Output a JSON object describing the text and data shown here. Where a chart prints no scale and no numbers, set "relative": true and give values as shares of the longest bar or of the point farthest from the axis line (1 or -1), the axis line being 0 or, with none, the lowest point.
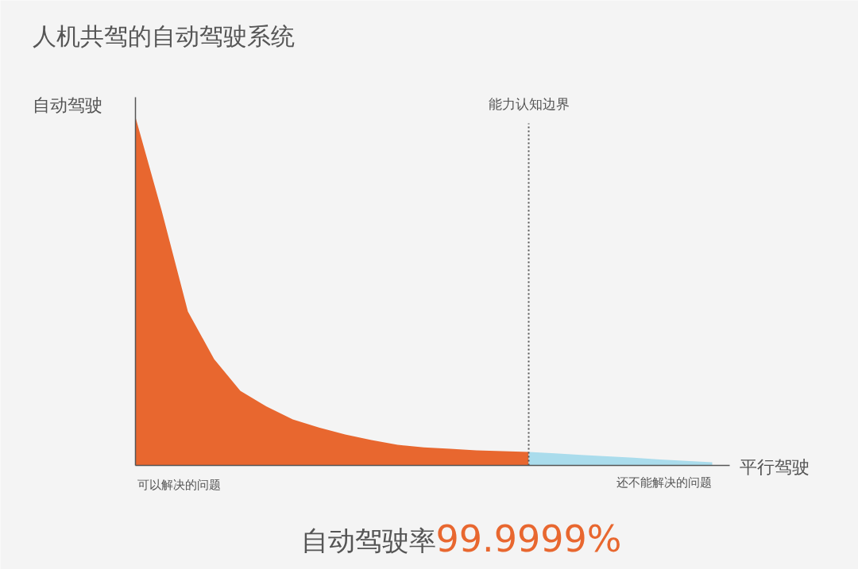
{
  "chart_data": {
    "type": "area",
    "title": "人机共驾的自动驾驶系统",
    "xlabel": "平行驾驶",
    "ylabel": "自动驾驶",
    "relative": true,
    "grid": false,
    "categories": [
      null,
      null,
      null,
      null,
      null,
      null,
      null,
      null,
      null,
      null,
      null,
      null,
      null,
      null,
      null,
      null,
      null,
      null,
      null,
      null,
      null,
      null,
      null
    ],
    "series": [
      {
        "color": "#e8672f",
        "values": [
          1.0,
          0.731,
          0.442,
          0.305,
          0.214,
          0.169,
          0.132,
          0.109,
          0.089,
          0.073,
          0.059,
          0.052,
          0.048,
          0.043,
          0.041,
          0.039,
          null,
          null,
          null,
          null,
          null,
          null,
          null
        ]
      },
      {
        "color": "#aadcec",
        "values": [
          null,
          null,
          null,
          null,
          null,
          null,
          null,
          null,
          null,
          null,
          null,
          null,
          null,
          null,
          null,
          0.039,
          0.035,
          0.03,
          0.026,
          0.022,
          0.017,
          0.013,
          0.009
        ]
      }
    ],
    "annotations": [
      "可以解决的问题",
      "还不能解决的问题",
      "自动驾驶率99.9999%",
      "能力认知边界"
    ]
  }
}
